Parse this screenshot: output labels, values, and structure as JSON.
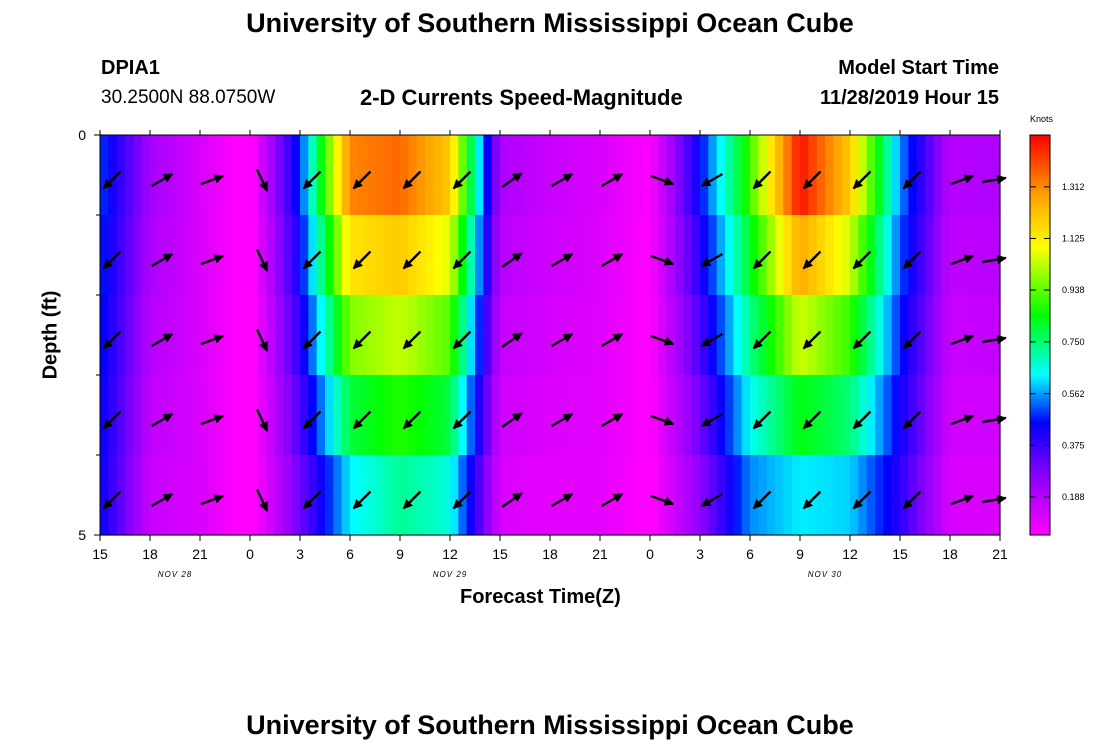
{
  "page": {
    "title_top": "University of Southern Mississippi Ocean Cube",
    "title_bottom": "University of Southern Mississippi Ocean Cube",
    "station": "DPIA1",
    "coords": "30.2500N 88.0750W",
    "subtitle": "2-D Currents Speed-Magnitude",
    "model_start_label": "Model Start Time",
    "model_start_value": "11/28/2019 Hour 15"
  },
  "chart_data": {
    "type": "heatmap",
    "title": "2-D Currents Speed-Magnitude",
    "xlabel": "Forecast Time(Z)",
    "ylabel": "Depth (ft)",
    "colorbar_label": "Knots",
    "colorbar_ticks": [
      "1.312",
      "1.125",
      "0.938",
      "0.750",
      "0.562",
      "0.375",
      "0.188"
    ],
    "colorbar_range": [
      0.05,
      1.5
    ],
    "x_ticks": [
      "15",
      "18",
      "21",
      "0",
      "3",
      "6",
      "9",
      "12",
      "15",
      "18",
      "21",
      "0",
      "3",
      "6",
      "9",
      "12",
      "15",
      "18",
      "21"
    ],
    "x_range_hours": [
      0,
      54
    ],
    "y_ticks": [
      "0",
      "5"
    ],
    "ylim": [
      0,
      5
    ],
    "date_labels": [
      {
        "text": "NOV  28",
        "hour": 4.5
      },
      {
        "text": "NOV  29",
        "hour": 21
      },
      {
        "text": "NOV  30",
        "hour": 43.5
      }
    ],
    "depth_levels": [
      0.5,
      1.5,
      2.5,
      3.5,
      4.5
    ],
    "hour_columns": [
      0,
      3,
      6,
      9,
      12,
      15,
      18,
      21,
      24,
      27,
      30,
      33,
      36,
      39,
      42,
      45,
      48,
      51,
      54
    ],
    "speed_surface": [
      0.5,
      0.22,
      0.12,
      0.02,
      0.48,
      1.32,
      1.36,
      1.2,
      0.2,
      0.15,
      0.12,
      0.05,
      0.45,
      0.9,
      1.48,
      1.2,
      0.55,
      0.18,
      0.2
    ],
    "speed_bottom": [
      0.45,
      0.15,
      0.12,
      0.02,
      0.3,
      0.62,
      0.72,
      0.66,
      0.12,
      0.1,
      0.1,
      0.04,
      0.25,
      0.55,
      0.62,
      0.6,
      0.4,
      0.12,
      0.12
    ],
    "vector_directions_deg": [
      135,
      -30,
      -20,
      65,
      135,
      135,
      135,
      135,
      -35,
      -30,
      -30,
      20,
      150,
      135,
      135,
      135,
      135,
      -20,
      -10
    ]
  }
}
